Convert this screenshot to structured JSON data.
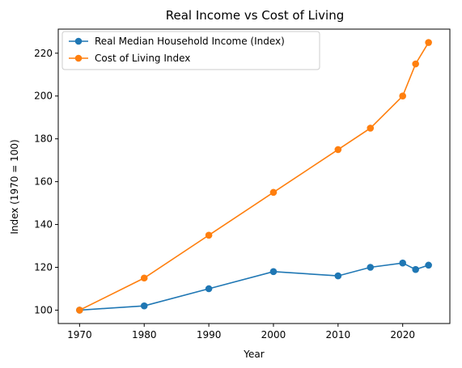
{
  "chart_data": {
    "type": "line",
    "title": "Real Income vs Cost of Living",
    "xlabel": "Year",
    "ylabel": "Index (1970 = 100)",
    "xlim": [
      1966.7,
      2027.3
    ],
    "ylim": [
      93.75,
      231.25
    ],
    "xticks": [
      1970,
      1980,
      1990,
      2000,
      2010,
      2020
    ],
    "yticks": [
      100,
      120,
      140,
      160,
      180,
      200,
      220
    ],
    "grid": false,
    "legend_position": "upper-left",
    "series": [
      {
        "name": "Real Median Household Income (Index)",
        "color": "#1f77b4",
        "x": [
          1970,
          1980,
          1990,
          2000,
          2010,
          2015,
          2020,
          2022,
          2024
        ],
        "y": [
          100,
          102,
          110,
          118,
          116,
          120,
          122,
          119,
          121
        ]
      },
      {
        "name": "Cost of Living Index",
        "color": "#ff7f0e",
        "x": [
          1970,
          1980,
          1990,
          2000,
          2010,
          2015,
          2020,
          2022,
          2024
        ],
        "y": [
          100,
          115,
          135,
          155,
          175,
          185,
          200,
          215,
          225
        ]
      }
    ]
  }
}
